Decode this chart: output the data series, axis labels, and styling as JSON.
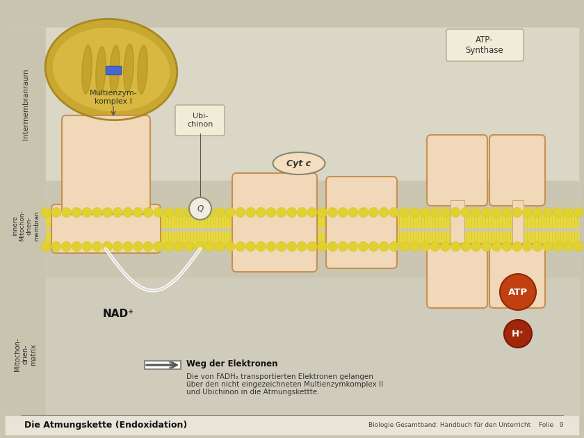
{
  "bg_outer": "#c8c4b0",
  "bg_slide": "#e8e4d8",
  "bg_inter": "#d8d4c4",
  "bg_mem": "#ccc8b4",
  "bg_matrix": "#d0ccbc",
  "membrane_yellow": "#e8d840",
  "membrane_yellow2": "#d8c830",
  "circle_yellow": "#e0d030",
  "complex_fill": "#f0d8b8",
  "complex_edge": "#c89050",
  "atp_orange": "#c04010",
  "hplus_red": "#a82808",
  "label_dark": "#333333",
  "label_black": "#111111",
  "white": "#ffffff",
  "title_text": "Die Atmungskette (Endoxidation)",
  "footer_right": "Biologie Gesamtband: Handbuch für den Unterricht",
  "footer_folie": "Folie   9",
  "atp_synthase_label": "ATP-\nSynthase",
  "intermembranraum_label": "Intermembranraum",
  "innere_label": "innere\nMitochon-\ndrien-\nmembran",
  "matrix_label": "Mitochon-\ndrien-\nmatrix",
  "multienzym_label": "Multienzym-\nkomplex I",
  "ubichinon_label": "Ubi-\nchinon",
  "cytc_label": "Cyt c",
  "nad_label": "NAD⁺",
  "q_label": "Q",
  "atp_label": "ATP",
  "hplus_label": "H⁺",
  "weg_title": "Weg der Elektronen",
  "weg_text1": "Die von FADH₂ transportierten Elektronen gelangen",
  "weg_text2": "über den nicht eingezeichneten Multienzymkomplex II",
  "weg_text3": "und Ubichinon in die Atmungskettte."
}
